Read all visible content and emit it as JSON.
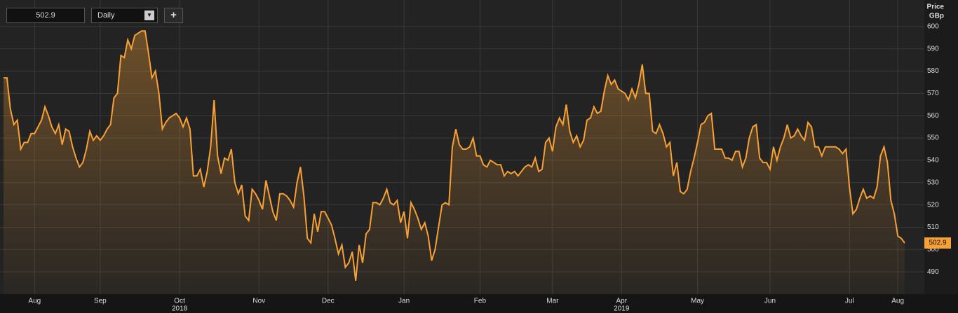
{
  "chart_data": {
    "type": "line",
    "ylabel": "Price",
    "yunit": "GBp",
    "controls": {
      "price": "502.9",
      "interval": "Daily",
      "add": "+"
    },
    "color": "#f7a035",
    "grid": true,
    "values": [
      577,
      577,
      563,
      556,
      558,
      545,
      548,
      548,
      552,
      552,
      555,
      558,
      564,
      560,
      555,
      552,
      556,
      547,
      554,
      553,
      546,
      541,
      537,
      539,
      545,
      553,
      549,
      551,
      549,
      551,
      554,
      556,
      568,
      570,
      587,
      586,
      594,
      590,
      596,
      597,
      598,
      598,
      588,
      577,
      580,
      570,
      554,
      557,
      559,
      560,
      561,
      559,
      555,
      559,
      554,
      533,
      533,
      536,
      528,
      535,
      546,
      567,
      542,
      534,
      541,
      540,
      545,
      530,
      525,
      529,
      515,
      513,
      527,
      525,
      522,
      518,
      531,
      524,
      517,
      513,
      525,
      525,
      524,
      522,
      519,
      530,
      537,
      524,
      505,
      503,
      516,
      508,
      517,
      517,
      514,
      511,
      505,
      498,
      502,
      492,
      494,
      499,
      486,
      502,
      494,
      507,
      509,
      521,
      521,
      520,
      523,
      527,
      521,
      520,
      522,
      512,
      517,
      505,
      521,
      518,
      514,
      509,
      512,
      506,
      495,
      500,
      510,
      520,
      521,
      520,
      546,
      554,
      547,
      545,
      545,
      546,
      550,
      542,
      542,
      538,
      537,
      540,
      539,
      538,
      538,
      533,
      535,
      534,
      535,
      533,
      535,
      537,
      538,
      537,
      541,
      535,
      536,
      548,
      550,
      544,
      555,
      559,
      556,
      565,
      553,
      548,
      551,
      546,
      549,
      558,
      559,
      564,
      561,
      562,
      571,
      578,
      574,
      576,
      572,
      571,
      570,
      567,
      572,
      568,
      574,
      583,
      570,
      570,
      553,
      552,
      556,
      552,
      546,
      548,
      533,
      539,
      526,
      525,
      527,
      535,
      541,
      548,
      556,
      557,
      560,
      561,
      545,
      545,
      545,
      541,
      541,
      540,
      544,
      544,
      537,
      541,
      550,
      555,
      556,
      541,
      539,
      539,
      536,
      546,
      540,
      546,
      550,
      556,
      550,
      551,
      554,
      551,
      549,
      557,
      555,
      546,
      546,
      542,
      546,
      546,
      546,
      546,
      545,
      543,
      545,
      528,
      516,
      518,
      523,
      527,
      523,
      524,
      523,
      528,
      542,
      546,
      539,
      522,
      516,
      506,
      505,
      502.9
    ],
    "xlim": [
      0,
      261
    ],
    "xticks": [
      {
        "value": 9,
        "label": "Aug"
      },
      {
        "value": 28,
        "label": "Sep"
      },
      {
        "value": 51,
        "label": "Oct"
      },
      {
        "value": 74,
        "label": "Nov"
      },
      {
        "value": 94,
        "label": "Dec"
      },
      {
        "value": 116,
        "label": "Jan"
      },
      {
        "value": 138,
        "label": "Feb"
      },
      {
        "value": 159,
        "label": "Mar"
      },
      {
        "value": 179,
        "label": "Apr"
      },
      {
        "value": 201,
        "label": "May"
      },
      {
        "value": 222,
        "label": "Jun"
      },
      {
        "value": 245,
        "label": "Jul"
      },
      {
        "value": 259,
        "label": "Aug"
      }
    ],
    "year_labels": [
      {
        "value": 51,
        "label": "2018"
      },
      {
        "value": 179,
        "label": "2019"
      }
    ],
    "ylim": [
      480,
      610
    ],
    "yticks": [
      490,
      500,
      510,
      520,
      530,
      540,
      550,
      560,
      570,
      580,
      590,
      600
    ]
  }
}
